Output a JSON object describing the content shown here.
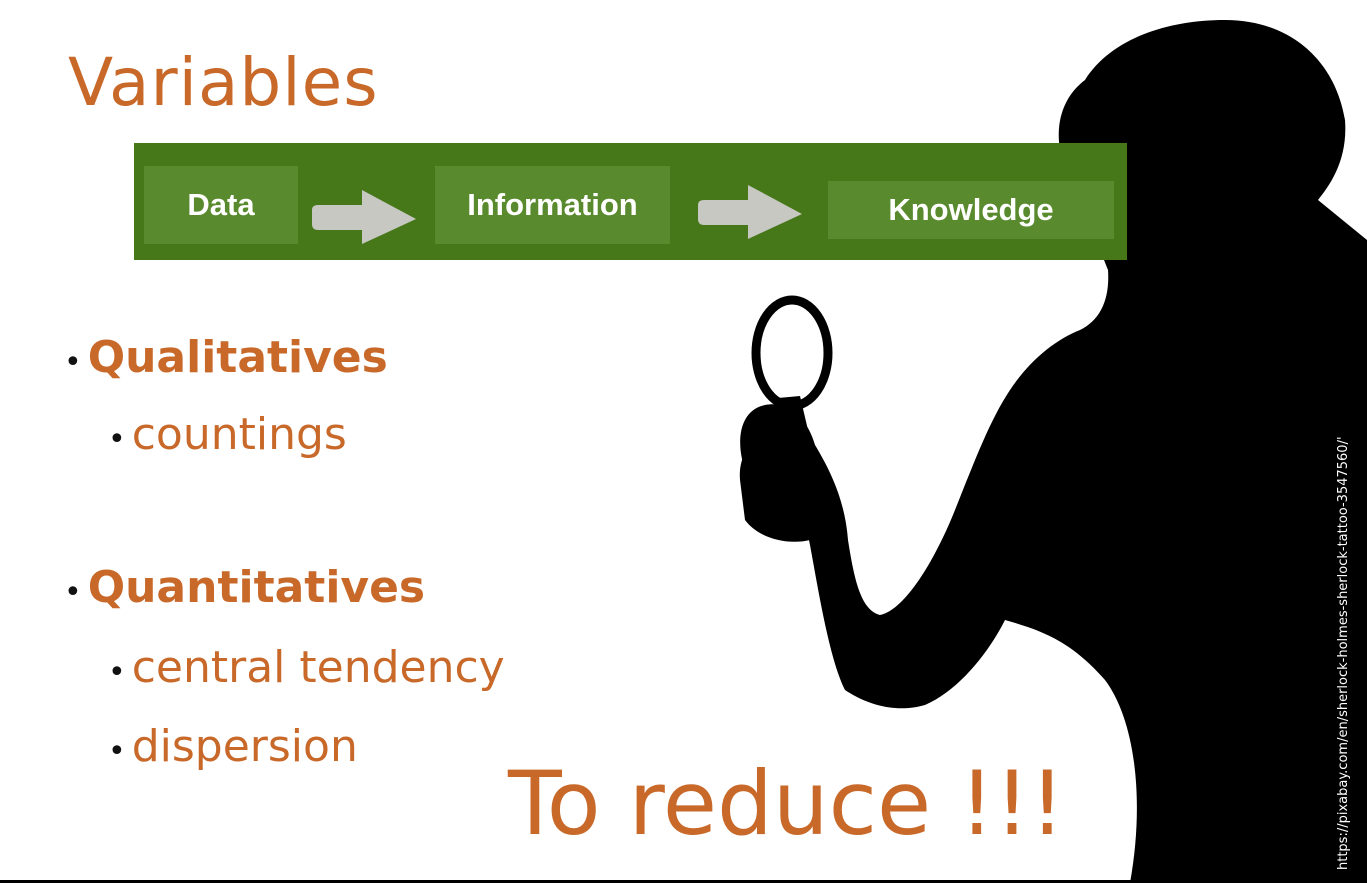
{
  "slide": {
    "title": "Variables",
    "flow": {
      "steps": [
        "Data",
        "Information",
        "Knowledge"
      ]
    },
    "bullets": [
      {
        "label": "Qualitatives",
        "children": [
          "countings"
        ]
      },
      {
        "label": "Quantitatives",
        "children": [
          "central tendency",
          "dispersion"
        ]
      }
    ],
    "callout": "To reduce !!!",
    "image_credit": "https://pixabay.com/en/sherlock-holmes-sherlock-tattoo-3547560/'"
  },
  "colors": {
    "accent": "#c8692a",
    "flow_band": "#46781a",
    "flow_box": "#5a8a2e",
    "arrow": "#c8c8c2",
    "silhouette": "#000000"
  },
  "icons": {
    "detective": "detective-silhouette-icon",
    "magnifier": "magnifying-glass-icon",
    "arrow": "right-arrow-icon"
  }
}
